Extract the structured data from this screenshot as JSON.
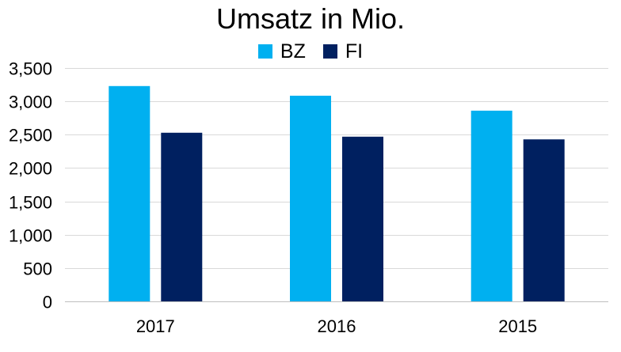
{
  "chart_data": {
    "type": "bar",
    "title": "Umsatz in Mio.",
    "categories": [
      "2017",
      "2016",
      "2015"
    ],
    "series": [
      {
        "name": "BZ",
        "color": "#00B0F0",
        "values": [
          3230,
          3085,
          2860
        ]
      },
      {
        "name": "FI",
        "color": "#002060",
        "values": [
          2530,
          2470,
          2430
        ]
      }
    ],
    "yticks": [
      0,
      500,
      1000,
      1500,
      2000,
      2500,
      3000,
      3500
    ],
    "ytick_labels": [
      "0",
      "500",
      "1,000",
      "1,500",
      "2,000",
      "2,500",
      "3,000",
      "3,500"
    ],
    "ylim": [
      0,
      3500
    ],
    "grid": true,
    "legend_position": "top-center",
    "xlabel": "",
    "ylabel": ""
  }
}
